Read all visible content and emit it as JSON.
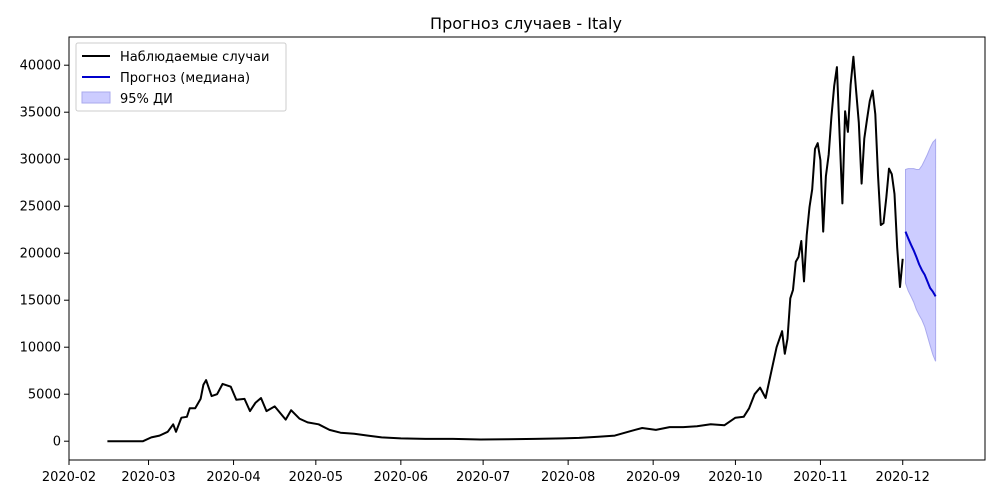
{
  "chart_data": {
    "type": "line",
    "title": "Прогноз случаев - Italy",
    "xlabel": "",
    "ylabel": "",
    "x_ticks": [
      "2020-02",
      "2020-03",
      "2020-04",
      "2020-05",
      "2020-06",
      "2020-07",
      "2020-08",
      "2020-09",
      "2020-10",
      "2020-11",
      "2020-12"
    ],
    "y_ticks": [
      "0",
      "5000",
      "10000",
      "15000",
      "20000",
      "25000",
      "30000",
      "35000",
      "40000"
    ],
    "xlim": [
      "2020-02-01",
      "2020-12-31"
    ],
    "ylim": [
      -2000,
      43000
    ],
    "grid": false,
    "legend_position": "top-left",
    "legend": [
      "Наблюдаемые случаи",
      "Прогноз (медиана)",
      "95% ДИ"
    ],
    "colors": {
      "observed": "#000000",
      "forecast": "#0000cc",
      "ci_fill": "#ccccff",
      "ci_edge": "#aaaaee"
    },
    "observed": {
      "name": "Наблюдаемые случаи",
      "points": [
        [
          "2020-02-15",
          0
        ],
        [
          "2020-02-28",
          0
        ],
        [
          "2020-03-02",
          400
        ],
        [
          "2020-03-05",
          600
        ],
        [
          "2020-03-08",
          1000
        ],
        [
          "2020-03-10",
          1800
        ],
        [
          "2020-03-11",
          1000
        ],
        [
          "2020-03-13",
          2500
        ],
        [
          "2020-03-15",
          2600
        ],
        [
          "2020-03-16",
          3500
        ],
        [
          "2020-03-18",
          3500
        ],
        [
          "2020-03-20",
          4500
        ],
        [
          "2020-03-21",
          6000
        ],
        [
          "2020-03-22",
          6500
        ],
        [
          "2020-03-24",
          4800
        ],
        [
          "2020-03-26",
          5000
        ],
        [
          "2020-03-28",
          6100
        ],
        [
          "2020-03-31",
          5800
        ],
        [
          "2020-04-02",
          4400
        ],
        [
          "2020-04-05",
          4500
        ],
        [
          "2020-04-07",
          3200
        ],
        [
          "2020-04-09",
          4100
        ],
        [
          "2020-04-11",
          4600
        ],
        [
          "2020-04-13",
          3200
        ],
        [
          "2020-04-16",
          3700
        ],
        [
          "2020-04-20",
          2300
        ],
        [
          "2020-04-22",
          3300
        ],
        [
          "2020-04-25",
          2400
        ],
        [
          "2020-04-28",
          2000
        ],
        [
          "2020-05-02",
          1800
        ],
        [
          "2020-05-06",
          1200
        ],
        [
          "2020-05-10",
          900
        ],
        [
          "2020-05-15",
          800
        ],
        [
          "2020-05-20",
          600
        ],
        [
          "2020-05-25",
          400
        ],
        [
          "2020-06-01",
          300
        ],
        [
          "2020-06-10",
          250
        ],
        [
          "2020-06-20",
          250
        ],
        [
          "2020-06-30",
          180
        ],
        [
          "2020-07-10",
          200
        ],
        [
          "2020-07-20",
          250
        ],
        [
          "2020-07-30",
          300
        ],
        [
          "2020-08-05",
          350
        ],
        [
          "2020-08-12",
          480
        ],
        [
          "2020-08-18",
          600
        ],
        [
          "2020-08-24",
          1100
        ],
        [
          "2020-08-28",
          1400
        ],
        [
          "2020-09-02",
          1200
        ],
        [
          "2020-09-07",
          1500
        ],
        [
          "2020-09-12",
          1500
        ],
        [
          "2020-09-17",
          1600
        ],
        [
          "2020-09-22",
          1800
        ],
        [
          "2020-09-27",
          1700
        ],
        [
          "2020-10-01",
          2500
        ],
        [
          "2020-10-04",
          2600
        ],
        [
          "2020-10-06",
          3500
        ],
        [
          "2020-10-08",
          5000
        ],
        [
          "2020-10-10",
          5700
        ],
        [
          "2020-10-12",
          4600
        ],
        [
          "2020-10-14",
          7300
        ],
        [
          "2020-10-16",
          10000
        ],
        [
          "2020-10-18",
          11700
        ],
        [
          "2020-10-19",
          9300
        ],
        [
          "2020-10-20",
          10900
        ],
        [
          "2020-10-21",
          15200
        ],
        [
          "2020-10-22",
          16100
        ],
        [
          "2020-10-23",
          19100
        ],
        [
          "2020-10-24",
          19600
        ],
        [
          "2020-10-25",
          21300
        ],
        [
          "2020-10-26",
          17000
        ],
        [
          "2020-10-27",
          21900
        ],
        [
          "2020-10-28",
          24900
        ],
        [
          "2020-10-29",
          26800
        ],
        [
          "2020-10-30",
          31100
        ],
        [
          "2020-10-31",
          31700
        ],
        [
          "2020-11-01",
          29900
        ],
        [
          "2020-11-02",
          22300
        ],
        [
          "2020-11-03",
          28200
        ],
        [
          "2020-11-04",
          30500
        ],
        [
          "2020-11-05",
          34500
        ],
        [
          "2020-11-06",
          37800
        ],
        [
          "2020-11-07",
          39800
        ],
        [
          "2020-11-08",
          32600
        ],
        [
          "2020-11-09",
          25300
        ],
        [
          "2020-11-10",
          35100
        ],
        [
          "2020-11-11",
          32900
        ],
        [
          "2020-11-12",
          37900
        ],
        [
          "2020-11-13",
          40900
        ],
        [
          "2020-11-14",
          37300
        ],
        [
          "2020-11-15",
          33900
        ],
        [
          "2020-11-16",
          27400
        ],
        [
          "2020-11-17",
          32200
        ],
        [
          "2020-11-18",
          34300
        ],
        [
          "2020-11-19",
          36200
        ],
        [
          "2020-11-20",
          37300
        ],
        [
          "2020-11-21",
          34800
        ],
        [
          "2020-11-22",
          28300
        ],
        [
          "2020-11-23",
          23000
        ],
        [
          "2020-11-24",
          23200
        ],
        [
          "2020-11-25",
          25900
        ],
        [
          "2020-11-26",
          29000
        ],
        [
          "2020-11-27",
          28400
        ],
        [
          "2020-11-28",
          26300
        ],
        [
          "2020-11-29",
          20600
        ],
        [
          "2020-11-30",
          16400
        ],
        [
          "2020-12-01",
          19400
        ]
      ]
    },
    "forecast": {
      "name": "Прогноз (медиана)",
      "points": [
        [
          "2020-12-02",
          22300
        ],
        [
          "2020-12-03",
          21600
        ],
        [
          "2020-12-04",
          20900
        ],
        [
          "2020-12-05",
          20300
        ],
        [
          "2020-12-06",
          19600
        ],
        [
          "2020-12-07",
          18800
        ],
        [
          "2020-12-08",
          18200
        ],
        [
          "2020-12-09",
          17700
        ],
        [
          "2020-12-10",
          17000
        ],
        [
          "2020-12-11",
          16300
        ],
        [
          "2020-12-12",
          15900
        ],
        [
          "2020-12-13",
          15400
        ]
      ]
    },
    "ci": {
      "name": "95% ДИ",
      "points": [
        [
          "2020-12-02",
          16800,
          28900
        ],
        [
          "2020-12-03",
          16000,
          29000
        ],
        [
          "2020-12-04",
          15400,
          29000
        ],
        [
          "2020-12-05",
          14800,
          29000
        ],
        [
          "2020-12-06",
          14000,
          28900
        ],
        [
          "2020-12-07",
          13400,
          28900
        ],
        [
          "2020-12-08",
          12900,
          29300
        ],
        [
          "2020-12-09",
          12200,
          29900
        ],
        [
          "2020-12-10",
          11200,
          30500
        ],
        [
          "2020-12-11",
          10200,
          31200
        ],
        [
          "2020-12-12",
          9200,
          31800
        ],
        [
          "2020-12-13",
          8500,
          32100
        ]
      ]
    }
  }
}
